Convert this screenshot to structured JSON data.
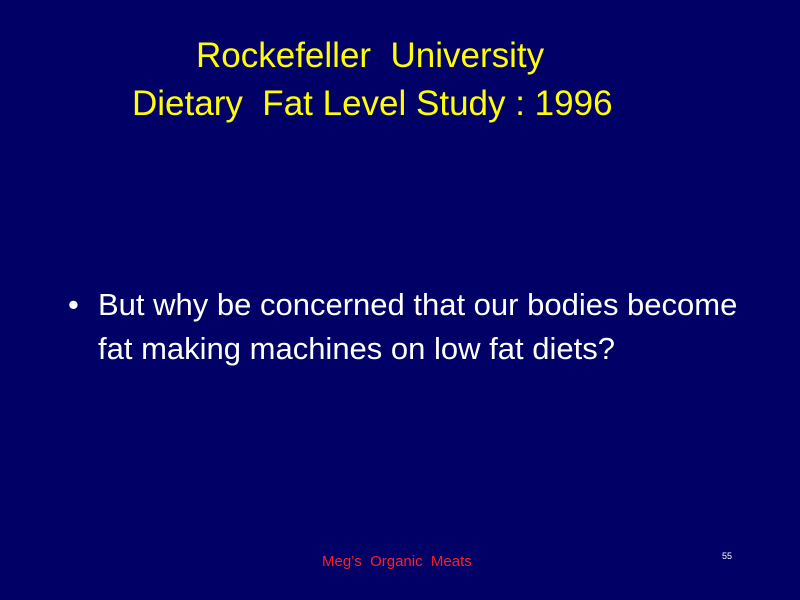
{
  "slide": {
    "title_line_1": "Rockefeller  University",
    "title_line_2": "Dietary  Fat Level Study : 1996",
    "bullets": [
      "But why be concerned that our bodies become fat making machines on low fat diets?"
    ],
    "bullet_symbol": "•",
    "footer": "Meg’s  Organic  Meats",
    "page_number": "55"
  },
  "colors": {
    "background": "#000066",
    "title": "#ffff00",
    "body_text": "#ffffff",
    "footer": "#ff2020"
  }
}
